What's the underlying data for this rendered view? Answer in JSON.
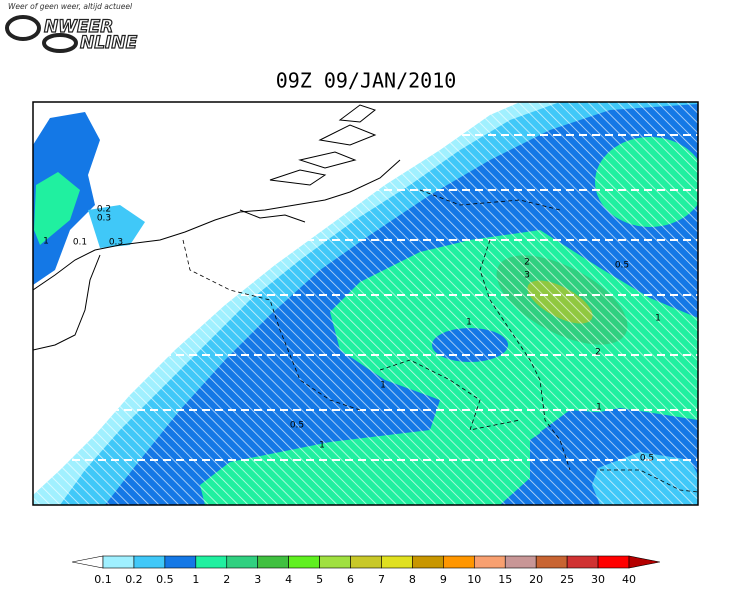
{
  "logo": {
    "tagline": "Weer of geen weer, altijd actueel",
    "word1": "NWEER",
    "word2": "NLINE"
  },
  "title": "09Z 09/JAN/2010",
  "map": {
    "contour_labels": [
      "0.2",
      "0.3",
      "1",
      "0.1",
      "0.3",
      "2",
      "3",
      "1",
      "2",
      "1",
      "0.5",
      "1",
      "0.5",
      "1",
      "0.5",
      "1"
    ]
  },
  "colorbar": {
    "below_color": "#ffffff",
    "colors": [
      "#a0f0ff",
      "#40c8f8",
      "#1478e6",
      "#20f0a0",
      "#30d080",
      "#40c040",
      "#60f020",
      "#a0e040",
      "#c8c828",
      "#e0e020",
      "#c89600",
      "#ff9600",
      "#f8a070",
      "#c89696",
      "#c86432",
      "#d03232",
      "#ff0000"
    ],
    "above_color": "#b40000",
    "labels": [
      0.1,
      0.2,
      0.5,
      1,
      2,
      3,
      4,
      5,
      6,
      7,
      8,
      9,
      10,
      15,
      20,
      25,
      30,
      40
    ]
  }
}
